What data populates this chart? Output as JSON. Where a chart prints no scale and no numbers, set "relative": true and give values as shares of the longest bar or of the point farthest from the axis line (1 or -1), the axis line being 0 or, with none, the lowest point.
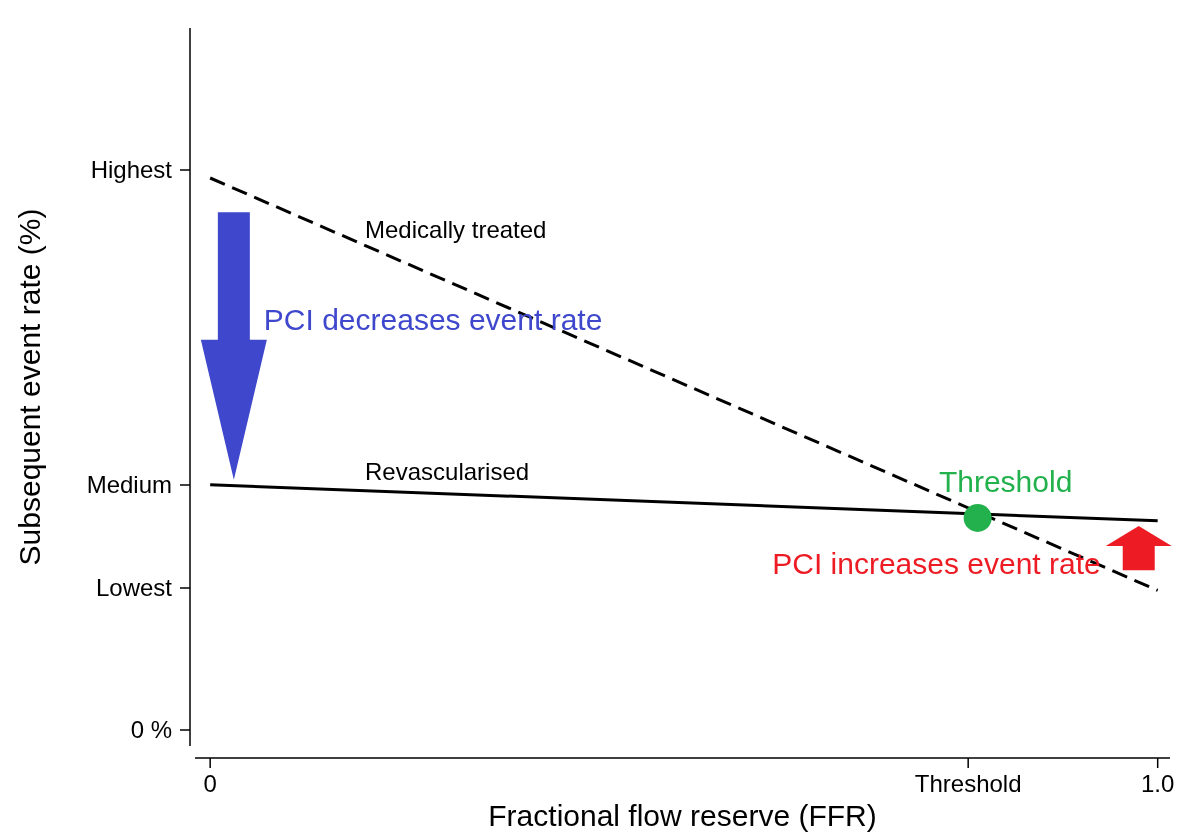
{
  "chart_data": {
    "type": "line",
    "xlabel": "Fractional flow reserve (FFR)",
    "ylabel": "Subsequent event rate (%)",
    "relative": true,
    "xlim": [
      -0.016,
      1.013
    ],
    "xticks": [
      0,
      {
        "value": 0.8,
        "label": "Threshold"
      },
      {
        "value": 1,
        "label": "1.0"
      }
    ],
    "series": [
      {
        "name": "Medically treated",
        "color": "#000000",
        "line_style": "dashed",
        "x": [
          0,
          1
        ],
        "values": [
          1,
          0.289
        ]
      },
      {
        "name": "Revascularised",
        "color": "#000000",
        "line_style": "solid",
        "x": [
          0,
          1
        ],
        "values": [
          0.471,
          0.409
        ]
      },
      {
        "name": "Threshold",
        "type": "scatter",
        "marker": "circle",
        "color": "#22b14c",
        "x": [
          0.81
        ],
        "values": [
          0.414
        ]
      }
    ],
    "annotations": [
      "Highest",
      "Medium",
      "Lowest",
      "0 %",
      "PCI decreases event rate",
      "PCI increases event rate"
    ]
  }
}
